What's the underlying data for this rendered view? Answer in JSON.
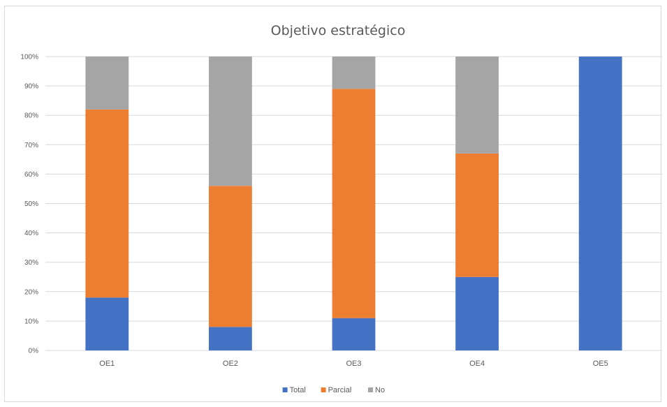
{
  "chart_data": {
    "type": "bar",
    "stacked": true,
    "title": "Objetivo estratégico",
    "categories": [
      "OE1",
      "OE2",
      "OE3",
      "OE4",
      "OE5"
    ],
    "series": [
      {
        "name": "Total",
        "color": "#4472c4",
        "values": [
          18,
          8,
          11,
          25,
          100
        ]
      },
      {
        "name": "Parcial",
        "color": "#ed7d31",
        "values": [
          64,
          48,
          78,
          42,
          0
        ]
      },
      {
        "name": "No",
        "color": "#a5a5a5",
        "values": [
          18,
          44,
          11,
          33,
          0
        ]
      }
    ],
    "y_ticks": [
      "0%",
      "10%",
      "20%",
      "30%",
      "40%",
      "50%",
      "60%",
      "70%",
      "80%",
      "90%",
      "100%"
    ],
    "ylim": [
      0,
      100
    ],
    "grid": true,
    "legend_position": "bottom"
  }
}
